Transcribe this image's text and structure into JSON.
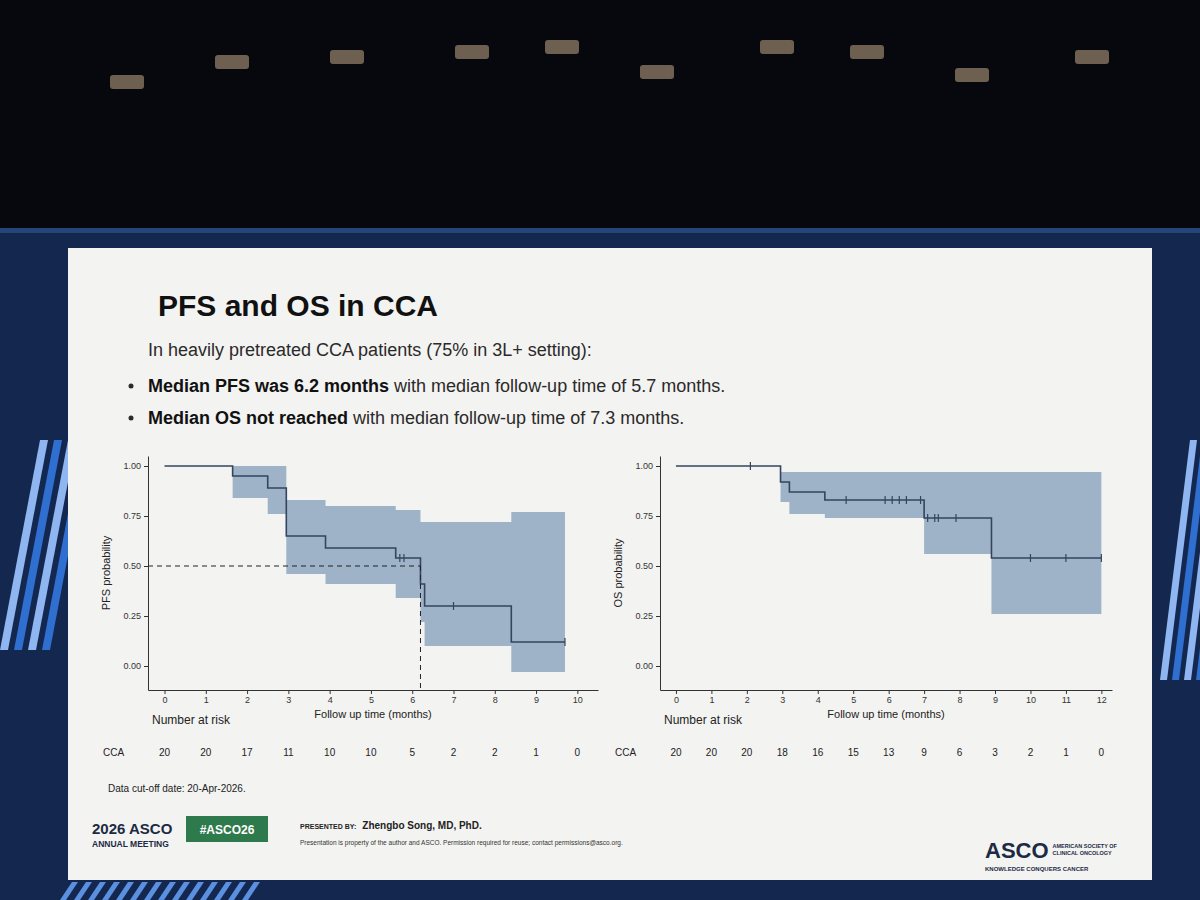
{
  "slide": {
    "title": "PFS and OS in CCA",
    "intro": "In heavily pretreated CCA patients (75% in 3L+ setting):",
    "bullets": [
      {
        "bold": "Median PFS was 6.2 months",
        "text": "with median follow-up time of 5.7 months."
      },
      {
        "bold": "Median OS not reached",
        "text": "with median follow-up time of 7.3 months."
      }
    ],
    "note": "Data cut-off date: 20-Apr-2026.",
    "meeting": [
      "2026 ASCO",
      "ANNUAL MEETING"
    ],
    "hashtag": "#ASCO26",
    "presented_by_label": "PRESENTED BY:",
    "presenter": "Zhengbo Song, MD, PhD.",
    "disclaimer": "Presentation is property of the author and ASCO. Permission required for reuse; contact permissions@asco.org.",
    "logo": "ASCO",
    "logo_lines": [
      "AMERICAN SOCIETY OF",
      "CLINICAL ONCOLOGY"
    ],
    "tagline": "KNOWLEDGE CONQUERS CANCER"
  },
  "chart_data": [
    {
      "type": "step",
      "x_label": "Follow up time (months)",
      "y_label": "PFS probability",
      "xlim": [
        -0.4,
        10.5
      ],
      "ylim": [
        -0.12,
        1.05
      ],
      "xticks": [
        0,
        1,
        2,
        3,
        4,
        5,
        6,
        7,
        8,
        9,
        10
      ],
      "yticks": [
        {
          "value": 0,
          "label": "0.00"
        },
        {
          "value": 0.25,
          "label": "0.25"
        },
        {
          "value": 0.5,
          "label": "0.50"
        },
        {
          "value": 0.75,
          "label": "0.75"
        },
        {
          "value": 1,
          "label": "1.00"
        }
      ],
      "grid": false,
      "series": [
        {
          "color": "#34455e",
          "ci_color": "#8ea7c1",
          "x": [
            0,
            1.65,
            2.5,
            2.95,
            3.9,
            5.6,
            6.2,
            6.3,
            8.4
          ],
          "values": [
            1.0,
            0.95,
            0.89,
            0.65,
            0.59,
            0.54,
            0.41,
            0.3,
            0.12
          ],
          "x_end": 9.7,
          "ci_lower": [
            1.0,
            0.84,
            0.76,
            0.46,
            0.41,
            0.34,
            0.22,
            0.1,
            -0.03
          ],
          "ci_upper": [
            1.0,
            1.0,
            1.0,
            0.83,
            0.8,
            0.78,
            0.72,
            0.72,
            0.77
          ],
          "censor_x": [
            5.7,
            5.8,
            7.0,
            9.7
          ],
          "censor_y": [
            0.54,
            0.54,
            0.3,
            0.12
          ]
        }
      ],
      "median": {
        "x": 6.2,
        "y": 0.5,
        "line_style": "dashed"
      },
      "at_risk": {
        "title": "Number at risk",
        "label": "CCA",
        "x": [
          0,
          1,
          2,
          3,
          4,
          5,
          6,
          7,
          8,
          9,
          10
        ],
        "values": [
          20,
          20,
          17,
          11,
          10,
          10,
          5,
          2,
          2,
          1,
          0
        ]
      }
    },
    {
      "type": "step",
      "x_label": "Follow up time (months)",
      "y_label": "OS probability",
      "xlim": [
        -0.45,
        12.3
      ],
      "ylim": [
        -0.12,
        1.05
      ],
      "xticks": [
        0,
        1,
        2,
        3,
        4,
        5,
        6,
        7,
        8,
        9,
        10,
        11,
        12
      ],
      "yticks": [
        {
          "value": 0,
          "label": "0.00"
        },
        {
          "value": 0.25,
          "label": "0.25"
        },
        {
          "value": 0.5,
          "label": "0.50"
        },
        {
          "value": 0.75,
          "label": "0.75"
        },
        {
          "value": 1,
          "label": "1.00"
        }
      ],
      "grid": false,
      "series": [
        {
          "color": "#34455e",
          "ci_color": "#8ea7c1",
          "x": [
            0,
            2.95,
            3.2,
            4.2,
            7.0,
            8.9
          ],
          "values": [
            1.0,
            0.92,
            0.87,
            0.83,
            0.74,
            0.54
          ],
          "x_end": 12.0,
          "ci_lower": [
            1.0,
            0.82,
            0.76,
            0.74,
            0.56,
            0.26
          ],
          "ci_upper": [
            1.0,
            0.97,
            0.97,
            0.97,
            0.97,
            0.97
          ],
          "censor_x": [
            2.1,
            4.8,
            5.9,
            6.1,
            6.3,
            6.5,
            6.9,
            7.1,
            7.3,
            7.4,
            7.9,
            10.0,
            11.0,
            12.0
          ],
          "censor_y": [
            1.0,
            0.83,
            0.83,
            0.83,
            0.83,
            0.83,
            0.83,
            0.74,
            0.74,
            0.74,
            0.74,
            0.54,
            0.54,
            0.54
          ]
        }
      ],
      "at_risk": {
        "title": "Number at risk",
        "label": "CCA",
        "x": [
          0,
          1,
          2,
          3,
          4,
          5,
          6,
          7,
          8,
          9,
          10,
          11,
          12
        ],
        "values": [
          20,
          20,
          20,
          18,
          16,
          15,
          13,
          9,
          6,
          3,
          2,
          1,
          0
        ]
      }
    }
  ]
}
